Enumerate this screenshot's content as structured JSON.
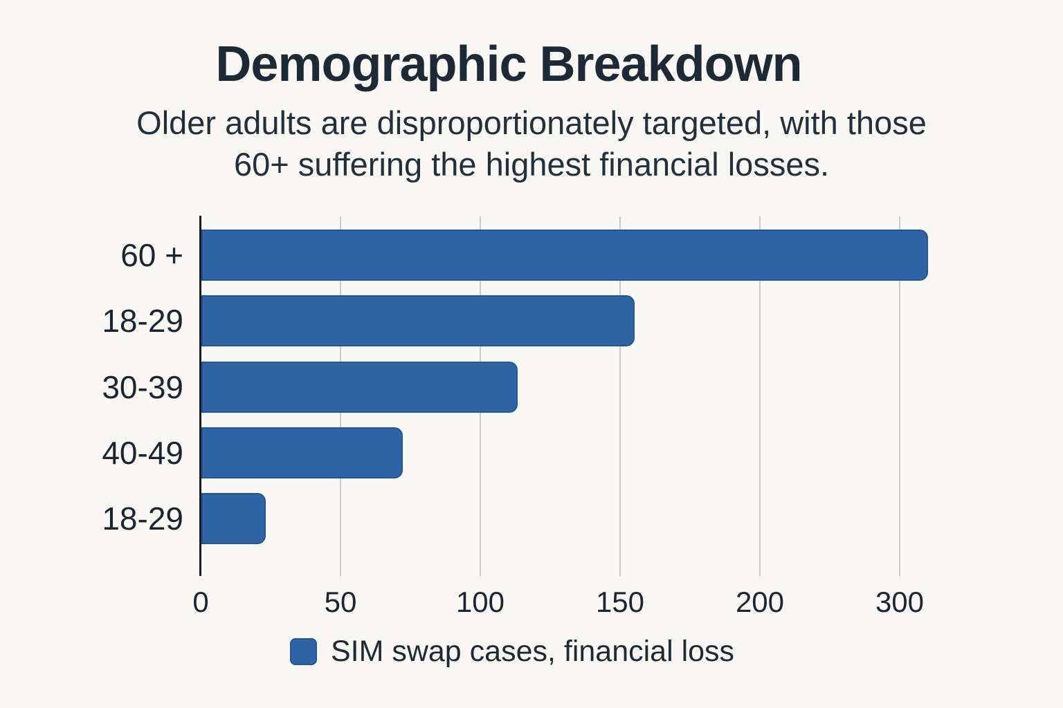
{
  "page": {
    "background_color": "#f8f7f4",
    "accent_color": "#2f65a7",
    "text_color": "#1d2935",
    "gridline_color": "#cbcac6"
  },
  "header": {
    "title": "Demographic Breakdown",
    "subtitle_line1": "Older adults are disproportionately targeted, with those",
    "subtitle_line2": "60+ suffering the highest financial losses."
  },
  "legend": {
    "label": "SIM swap cases, financial loss",
    "swatch_color": "#2f65a7"
  },
  "chart_data": {
    "type": "bar",
    "orientation": "horizontal",
    "title": "Demographic Breakdown",
    "subtitle": "Older adults are disproportionately targeted, with those 60+ suffering the highest financial losses.",
    "categories": [
      "60 +",
      "18-29",
      "30-39",
      "40-49",
      "18-29"
    ],
    "series": [
      {
        "name": "SIM swap cases, financial loss",
        "values": [
          320,
          155,
          113,
          72,
          23
        ]
      }
    ],
    "x_ticks": [
      0,
      50,
      100,
      150,
      200,
      300
    ],
    "x_tick_spacing": "equal (as printed; 250 label is skipped)",
    "bar_color": "#2f65a7",
    "grid": "vertical",
    "legend_position": "bottom"
  }
}
